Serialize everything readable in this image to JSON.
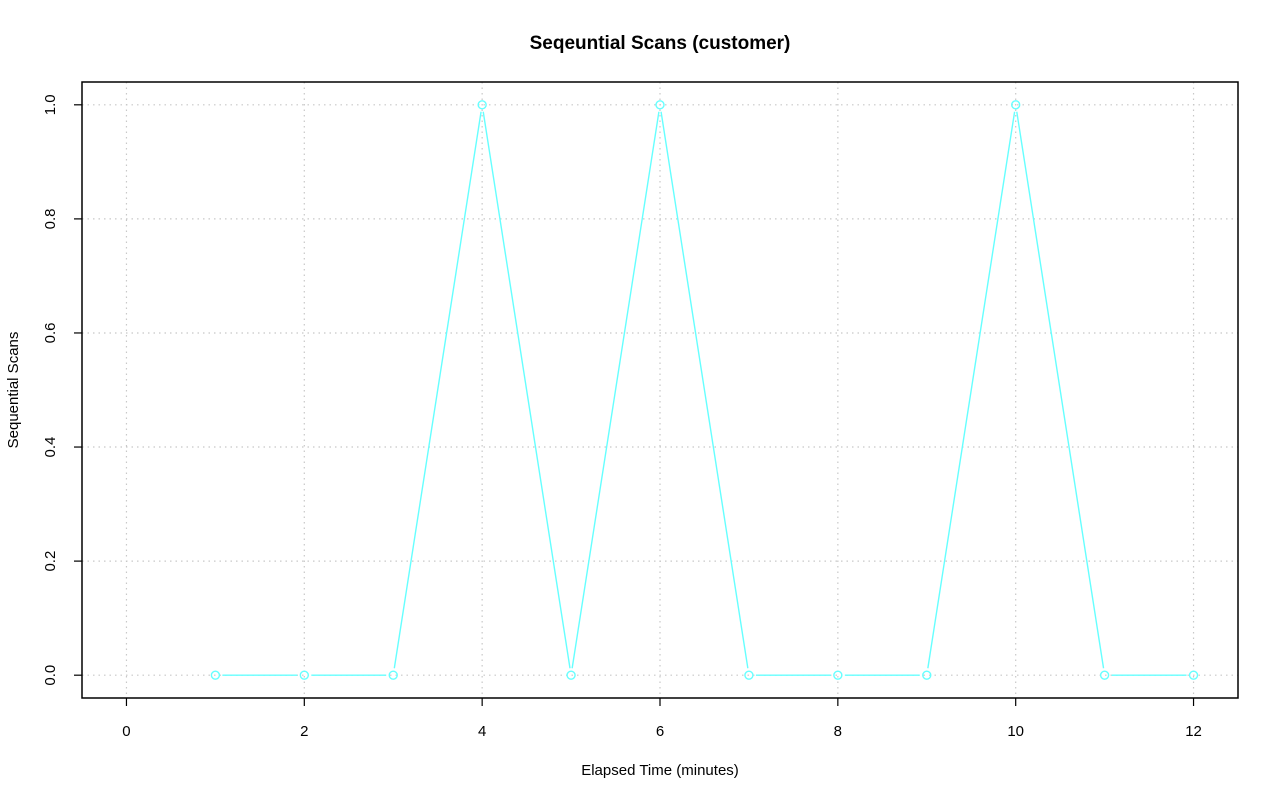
{
  "chart_data": {
    "type": "line",
    "title": "Seqeuntial Scans (customer)",
    "xlabel": "Elapsed Time (minutes)",
    "ylabel": "Sequential Scans",
    "xlim": [
      -0.5,
      12.5
    ],
    "ylim": [
      -0.04,
      1.04
    ],
    "x_ticks": [
      0,
      2,
      4,
      6,
      8,
      10,
      12
    ],
    "x_tick_labels": [
      "0",
      "2",
      "4",
      "6",
      "8",
      "10",
      "12"
    ],
    "y_ticks": [
      0.0,
      0.2,
      0.4,
      0.6,
      0.8,
      1.0
    ],
    "y_tick_labels": [
      "0.0",
      "0.2",
      "0.4",
      "0.6",
      "0.8",
      "1.0"
    ],
    "grid": true,
    "marker": "open-circle",
    "color": "#66ffff",
    "x": [
      1,
      2,
      3,
      4,
      5,
      6,
      7,
      8,
      9,
      10,
      11,
      12
    ],
    "y": [
      0,
      0,
      0,
      1,
      0,
      1,
      0,
      0,
      0,
      1,
      0,
      0
    ]
  }
}
